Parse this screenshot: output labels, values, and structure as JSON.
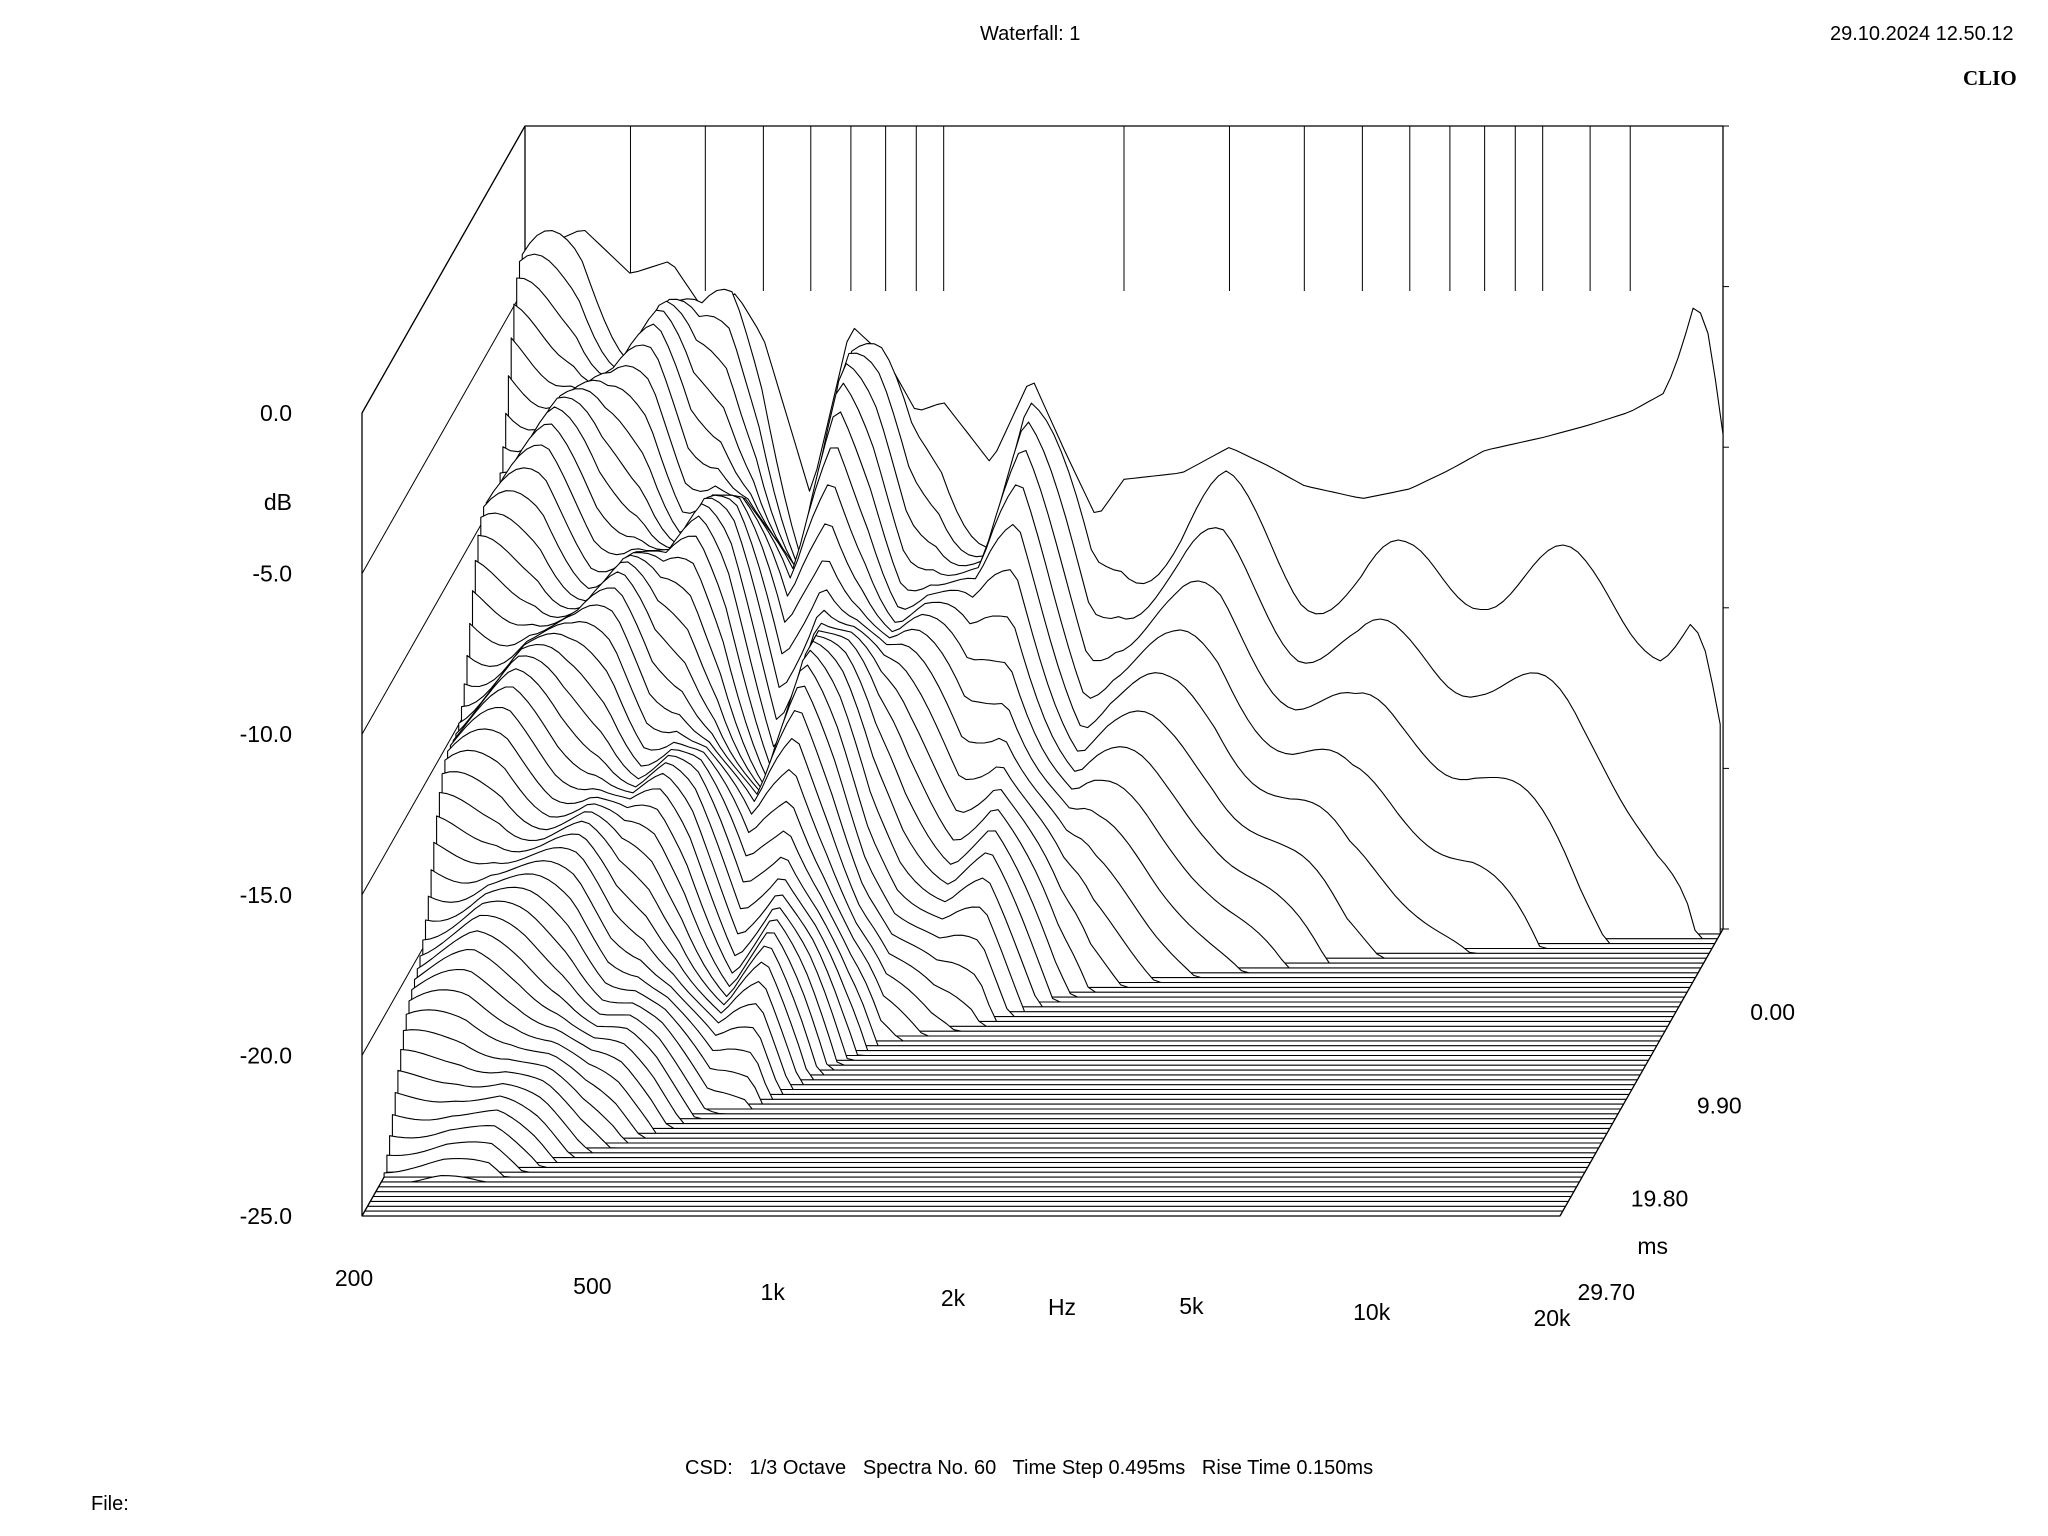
{
  "header": {
    "title": "Waterfall: 1",
    "timestamp": "29.10.2024 12.50.12",
    "brand": "CLIO"
  },
  "footer": {
    "info": "CSD:   1/3 Octave   Spectra No. 60   Time Step 0.495ms   Rise Time 0.150ms",
    "file_label": "File:"
  },
  "chart_data": {
    "type": "waterfall",
    "title": "Waterfall: 1",
    "analysis": "CSD",
    "smoothing": "1/3 Octave",
    "spectra_count": 60,
    "time_step_ms": 0.495,
    "rise_time_ms": 0.15,
    "x_axis": {
      "label": "Hz",
      "scale": "log",
      "range": [
        200,
        20000
      ],
      "ticks": [
        200,
        500,
        1000,
        2000,
        5000,
        10000,
        20000
      ],
      "tick_labels": [
        "200",
        "500",
        "1k",
        "2k",
        "5k",
        "10k",
        "20k"
      ]
    },
    "y_axis": {
      "label": "dB",
      "range": [
        -25,
        0
      ],
      "ticks": [
        0,
        -5,
        -10,
        -15,
        -20,
        -25
      ],
      "tick_labels": [
        "0.0",
        "-5.0",
        "-10.0",
        "-15.0",
        "-20.0",
        "-25.0"
      ]
    },
    "z_axis": {
      "label": "ms",
      "range": [
        0,
        29.7
      ],
      "ticks": [
        0,
        9.9,
        19.8,
        29.7
      ],
      "tick_labels": [
        "0.00",
        "9.90",
        "19.80",
        "29.70"
      ]
    },
    "initial_spectrum_db": [
      [
        200,
        -4.0
      ],
      [
        250,
        -3.2
      ],
      [
        300,
        -4.6
      ],
      [
        350,
        -4.2
      ],
      [
        400,
        -5.8
      ],
      [
        450,
        -5.2
      ],
      [
        500,
        -6.6
      ],
      [
        600,
        -11.5
      ],
      [
        700,
        -6.2
      ],
      [
        800,
        -7.2
      ],
      [
        900,
        -8.9
      ],
      [
        1000,
        -8.6
      ],
      [
        1200,
        -10.5
      ],
      [
        1400,
        -7.8
      ],
      [
        1600,
        -10.2
      ],
      [
        1800,
        -12.2
      ],
      [
        2000,
        -11.0
      ],
      [
        2500,
        -10.8
      ],
      [
        3000,
        -10.0
      ],
      [
        3500,
        -10.6
      ],
      [
        4000,
        -11.2
      ],
      [
        5000,
        -11.6
      ],
      [
        6000,
        -11.3
      ],
      [
        7000,
        -10.7
      ],
      [
        8000,
        -10.1
      ],
      [
        10000,
        -9.7
      ],
      [
        12000,
        -9.3
      ],
      [
        14000,
        -8.9
      ],
      [
        16000,
        -8.3
      ],
      [
        17000,
        -7.0
      ],
      [
        18000,
        -5.4
      ],
      [
        19000,
        -6.6
      ],
      [
        20000,
        -9.6
      ]
    ],
    "decay_profile": [
      {
        "f": 200,
        "time_to_floor_ms": 29.7
      },
      {
        "f": 300,
        "time_to_floor_ms": 29.7
      },
      {
        "f": 500,
        "time_to_floor_ms": 25.0
      },
      {
        "f": 700,
        "time_to_floor_ms": 22.0
      },
      {
        "f": 1000,
        "time_to_floor_ms": 14.0
      },
      {
        "f": 1400,
        "time_to_floor_ms": 12.0
      },
      {
        "f": 2000,
        "time_to_floor_ms": 8.0
      },
      {
        "f": 3000,
        "time_to_floor_ms": 6.0
      },
      {
        "f": 5000,
        "time_to_floor_ms": 4.0
      },
      {
        "f": 8000,
        "time_to_floor_ms": 3.0
      },
      {
        "f": 12000,
        "time_to_floor_ms": 2.0
      },
      {
        "f": 20000,
        "time_to_floor_ms": 1.0
      }
    ]
  },
  "style": {
    "line_color": "#000000",
    "background": "#ffffff"
  }
}
